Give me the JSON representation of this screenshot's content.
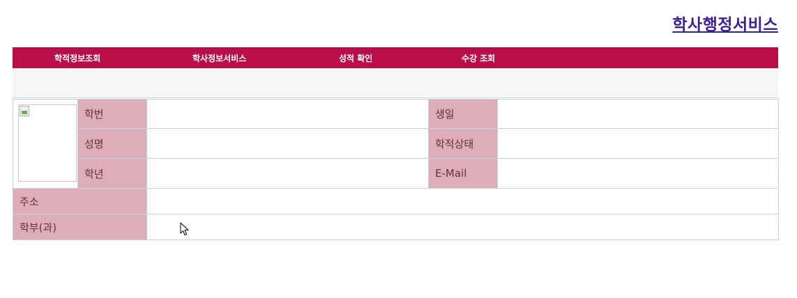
{
  "header": {
    "title": "학사행정서비스"
  },
  "nav": {
    "items": [
      {
        "label": "학적정보조회"
      },
      {
        "label": "학사정보서비스"
      },
      {
        "label": "성적 확인"
      },
      {
        "label": "수강 조회"
      }
    ]
  },
  "info": {
    "student_id": {
      "label": "학번",
      "value": ""
    },
    "name": {
      "label": "성명",
      "value": ""
    },
    "grade": {
      "label": "학년",
      "value": ""
    },
    "birthday": {
      "label": "생일",
      "value": ""
    },
    "status": {
      "label": "학적상태",
      "value": ""
    },
    "email": {
      "label": "E-Mail",
      "value": ""
    },
    "address": {
      "label": "주소",
      "value": ""
    },
    "department": {
      "label": "학부(과)",
      "value": ""
    }
  },
  "colors": {
    "nav_bg": "#b80f4a",
    "label_bg": "#dbaeb8",
    "title": "#3b1f8f"
  },
  "icons": {
    "photo": "broken-image-icon",
    "cursor": "mouse-pointer-icon"
  }
}
